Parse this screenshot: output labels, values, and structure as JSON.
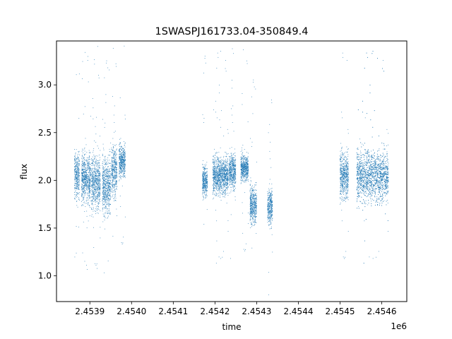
{
  "chart_data": {
    "type": "scatter",
    "title": "1SWASPJ161733.04-350849.4",
    "xlabel": "time",
    "ylabel": "flux",
    "x_offset_label": "1e6",
    "xlim": [
      2453820,
      2454660
    ],
    "ylim": [
      0.73,
      3.46
    ],
    "x_ticks": [
      2453900,
      2454000,
      2454100,
      2454200,
      2454300,
      2454400,
      2454500,
      2454600
    ],
    "x_tick_labels": [
      "2.4539",
      "2.4540",
      "2.4541",
      "2.4542",
      "2.4543",
      "2.4544",
      "2.4545",
      "2.4546"
    ],
    "y_ticks": [
      1.0,
      1.5,
      2.0,
      2.5,
      3.0
    ],
    "y_tick_labels": [
      "1.0",
      "1.5",
      "2.0",
      "2.5",
      "3.0"
    ],
    "grid": false,
    "marker_color": "#1f77b4",
    "series": [
      {
        "name": "",
        "segments": [
          {
            "x_start": 2453863,
            "x_end": 2453875,
            "center": 2.05,
            "spread": 0.22
          },
          {
            "x_start": 2453880,
            "x_end": 2453902,
            "center": 2.02,
            "spread": 0.24
          },
          {
            "x_start": 2453904,
            "x_end": 2453925,
            "center": 1.98,
            "spread": 0.26
          },
          {
            "x_start": 2453930,
            "x_end": 2453950,
            "center": 1.95,
            "spread": 0.28
          },
          {
            "x_start": 2453952,
            "x_end": 2453965,
            "center": 2.1,
            "spread": 0.25
          },
          {
            "x_start": 2453970,
            "x_end": 2453985,
            "center": 2.2,
            "spread": 0.15
          },
          {
            "x_start": 2454170,
            "x_end": 2454182,
            "center": 2.0,
            "spread": 0.15
          },
          {
            "x_start": 2454195,
            "x_end": 2454232,
            "center": 2.05,
            "spread": 0.18
          },
          {
            "x_start": 2454234,
            "x_end": 2454250,
            "center": 2.1,
            "spread": 0.17
          },
          {
            "x_start": 2454262,
            "x_end": 2454280,
            "center": 2.13,
            "spread": 0.12
          },
          {
            "x_start": 2454284,
            "x_end": 2454300,
            "center": 1.75,
            "spread": 0.18
          },
          {
            "x_start": 2454326,
            "x_end": 2454338,
            "center": 1.72,
            "spread": 0.18
          },
          {
            "x_start": 2454500,
            "x_end": 2454520,
            "center": 2.05,
            "spread": 0.22
          },
          {
            "x_start": 2454540,
            "x_end": 2454616,
            "center": 2.05,
            "spread": 0.25
          }
        ]
      }
    ]
  }
}
